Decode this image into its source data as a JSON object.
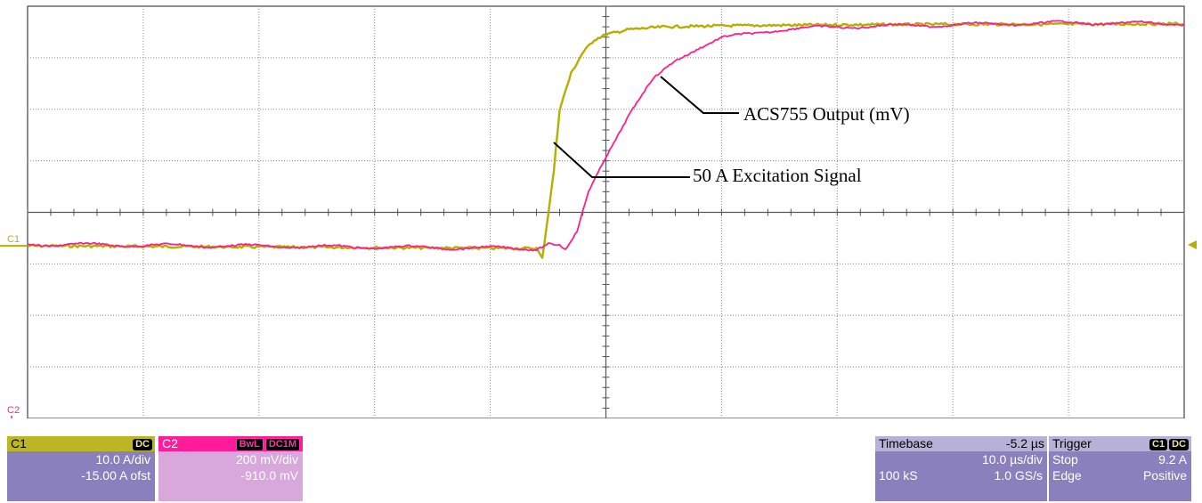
{
  "chart_data": {
    "type": "line",
    "title": "",
    "xlabel": "",
    "ylabel": "",
    "x_divisions": 10,
    "y_divisions": 8,
    "grid": true,
    "series": [
      {
        "name": "50 A Excitation Signal",
        "channel": "C1",
        "color": "#b5b000",
        "x_div": [
          0,
          4.4,
          4.45,
          4.55,
          4.6,
          4.7,
          4.8,
          4.9,
          5.0,
          5.2,
          5.5,
          6.0,
          7.0,
          8.0,
          9.0,
          10.0
        ],
        "y_div": [
          3.35,
          3.3,
          3.1,
          4.8,
          6.0,
          6.7,
          7.1,
          7.35,
          7.45,
          7.55,
          7.6,
          7.62,
          7.64,
          7.65,
          7.65,
          7.66
        ]
      },
      {
        "name": "ACS755 Output (mV)",
        "channel": "C2",
        "color": "#ff1e8c",
        "x_div": [
          0,
          4.4,
          4.5,
          4.6,
          4.65,
          4.75,
          4.85,
          5.0,
          5.2,
          5.4,
          5.6,
          5.8,
          6.0,
          6.5,
          7.0,
          8.0,
          9.0,
          10.0
        ],
        "y_div": [
          3.38,
          3.3,
          3.4,
          3.35,
          3.25,
          3.6,
          4.4,
          5.1,
          5.9,
          6.55,
          6.95,
          7.2,
          7.38,
          7.55,
          7.6,
          7.64,
          7.68,
          7.66
        ]
      }
    ],
    "annotations": [
      {
        "text": "ACS755 Output (mV)"
      },
      {
        "text": "50 A Excitation Signal"
      }
    ],
    "markers": {
      "c1_label": "C1",
      "c2_label": "C2"
    }
  },
  "channels": {
    "c1": {
      "name": "C1",
      "coupling": "DC",
      "scale": "10.0 A/div",
      "offset": "-15.00 A ofst"
    },
    "c2": {
      "name": "C2",
      "bw": "BwL",
      "coupling": "DC1M",
      "scale": "200 mV/div",
      "offset": "-910.0 mV"
    }
  },
  "timebase": {
    "label": "Timebase",
    "delay": "-5.2 µs",
    "scale": "10.0 µs/div",
    "samples": "100 kS",
    "rate": "1.0 GS/s"
  },
  "trigger": {
    "label": "Trigger",
    "source": "C1",
    "coupling": "DC",
    "mode": "Stop",
    "level": "9.2 A",
    "type": "Edge",
    "slope": "Positive"
  }
}
